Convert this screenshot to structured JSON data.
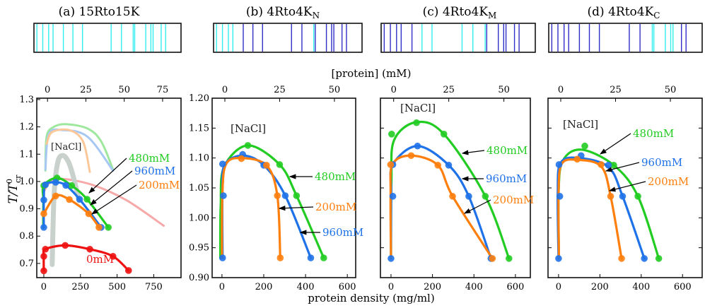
{
  "figure": {
    "top_axis_label": "[protein] (mM)",
    "bottom_axis_label": "protein density (mg/ml)",
    "y_axis_label": "T/T",
    "y_axis_label_sup": "0",
    "y_axis_label_sub": "cr"
  },
  "colors": {
    "K": "#33eeee",
    "R": "#3030c8",
    "480mM": "#22cc22",
    "960mM": "#1f72e8",
    "200mM": "#ff7f0e",
    "0mM": "#ee1111"
  },
  "strips": [
    {
      "title": "(a)  15Rto15K",
      "title_sub": "",
      "residues": [
        "K",
        "K",
        "K",
        "K",
        "K",
        "K",
        "K",
        "K",
        "K",
        "K",
        "K",
        "K",
        "K",
        "K",
        "K",
        "K"
      ]
    },
    {
      "title": "(b) 4Rto4K",
      "title_sub": "N",
      "residues": [
        "K",
        "K",
        "K",
        "K",
        "R",
        "R",
        "R",
        "R",
        "R",
        "K",
        "R",
        "R",
        "R",
        "R",
        "R",
        "R"
      ]
    },
    {
      "title": "(c) 4Rto4K",
      "title_sub": "M",
      "residues": [
        "R",
        "R",
        "R",
        "R",
        "R",
        "K",
        "K",
        "K",
        "K",
        "K",
        "R",
        "R",
        "R",
        "R",
        "R",
        "R"
      ]
    },
    {
      "title": "(d) 4Rto4K",
      "title_sub": "C",
      "residues": [
        "R",
        "R",
        "R",
        "R",
        "R",
        "R",
        "R",
        "R",
        "R",
        "K",
        "K",
        "K",
        "K",
        "K",
        "R",
        "R"
      ]
    }
  ],
  "chart_data": [
    {
      "type": "line",
      "panel": "a",
      "xlabel": "protein density (mg/ml)",
      "top_xlabel": "[protein] (mM)",
      "xlim": [
        -48,
        936
      ],
      "top_xlim": [
        -7,
        87
      ],
      "ylim": [
        0.648,
        1.305
      ],
      "xticks": [
        0,
        250,
        500,
        750
      ],
      "top_xticks": [
        0,
        25,
        50,
        75
      ],
      "yticks": [
        0.7,
        0.8,
        0.9,
        1.0,
        1.1,
        1.2,
        1.3
      ],
      "ytick_labels": [
        "0.7",
        "0.8",
        "0.9",
        "1.0",
        "1.1",
        "1.2",
        "1.3"
      ],
      "legend_title": "[NaCl]",
      "background_curves": [
        {
          "color": "#9ee89e",
          "points": [
            [
              11,
              1.04
            ],
            [
              19,
              1.164
            ],
            [
              65,
              1.199
            ],
            [
              150,
              1.21
            ],
            [
              298,
              1.194
            ],
            [
              391,
              1.147
            ],
            [
              472,
              1.044
            ]
          ]
        },
        {
          "color": "#a8c8f4",
          "points": [
            [
              11,
              1.044
            ],
            [
              34,
              1.173
            ],
            [
              127,
              1.188
            ],
            [
              298,
              1.164
            ],
            [
              472,
              1.04
            ]
          ]
        },
        {
          "color": "#fcc89a",
          "points": [
            [
              19,
              1.138
            ],
            [
              57,
              1.181
            ],
            [
              174,
              1.188
            ],
            [
              267,
              1.147
            ],
            [
              314,
              1.035
            ]
          ]
        },
        {
          "color": "#f7a8a8",
          "points": [
            [
              3,
              0.965
            ],
            [
              40,
              0.995
            ],
            [
              127,
              1.009
            ],
            [
              329,
              0.988
            ],
            [
              562,
              0.932
            ],
            [
              818,
              0.838
            ]
          ]
        },
        {
          "color": "#c9d1cc",
          "width": 7,
          "points": [
            [
              57,
              0.696
            ],
            [
              70,
              0.95
            ],
            [
              95,
              1.07
            ],
            [
              130,
              1.095
            ],
            [
              170,
              1.07
            ],
            [
              205,
              1.01
            ],
            [
              240,
              0.93
            ]
          ]
        }
      ],
      "series": [
        {
          "name": "0mM",
          "points": [
            [
              0,
              0.673
            ],
            [
              0,
              0.726
            ],
            [
              11,
              0.752
            ],
            [
              146,
              0.766
            ],
            [
              314,
              0.752
            ],
            [
              472,
              0.726
            ],
            [
              578,
              0.674
            ]
          ],
          "curve": [
            [
              0,
              0.673
            ],
            [
              0,
              0.726
            ],
            [
              11,
              0.752
            ],
            [
              146,
              0.766
            ],
            [
              314,
              0.752
            ],
            [
              472,
              0.726
            ],
            [
              578,
              0.674
            ]
          ]
        },
        {
          "name": "480mM",
          "points": [
            [
              0,
              0.985
            ],
            [
              90,
              1.013
            ],
            [
              190,
              0.985
            ],
            [
              295,
              0.935
            ],
            [
              440,
              0.832
            ]
          ],
          "curve": [
            [
              -4,
              0.83
            ],
            [
              -3,
              0.93
            ],
            [
              0,
              0.985
            ],
            [
              90,
              1.013
            ],
            [
              190,
              0.985
            ],
            [
              295,
              0.935
            ],
            [
              440,
              0.832
            ]
          ]
        },
        {
          "name": "960mM",
          "points": [
            [
              0,
              0.832
            ],
            [
              0,
              0.932
            ],
            [
              11,
              0.988
            ],
            [
              81,
              0.997
            ],
            [
              150,
              0.986
            ],
            [
              244,
              0.935
            ],
            [
              391,
              0.832
            ]
          ],
          "curve": [
            [
              0,
              0.832
            ],
            [
              0,
              0.932
            ],
            [
              11,
              0.988
            ],
            [
              81,
              0.997
            ],
            [
              150,
              0.986
            ],
            [
              244,
              0.935
            ],
            [
              391,
              0.832
            ]
          ]
        },
        {
          "name": "200mM",
          "points": [
            [
              0,
              0.882
            ],
            [
              81,
              0.947
            ],
            [
              174,
              0.934
            ],
            [
              306,
              0.882
            ],
            [
              376,
              0.832
            ]
          ],
          "curve": [
            [
              0,
              0.882
            ],
            [
              81,
              0.947
            ],
            [
              174,
              0.934
            ],
            [
              306,
              0.882
            ],
            [
              376,
              0.832
            ]
          ]
        }
      ]
    },
    {
      "type": "line",
      "panel": "b",
      "xlim": [
        -47,
        640
      ],
      "top_xlim": [
        -5.8,
        59.7
      ],
      "ylim": [
        0.9,
        1.2
      ],
      "xticks": [
        0,
        200,
        400,
        600
      ],
      "top_xticks": [
        0,
        25,
        50
      ],
      "yticks": [
        0.9,
        0.95,
        1.0,
        1.05,
        1.1,
        1.15,
        1.2
      ],
      "ytick_labels": [
        "0.90",
        "0.95",
        "1.00",
        "1.05",
        "1.10",
        "1.15",
        "1.20"
      ],
      "legend_title": "[NaCl]",
      "series": [
        {
          "name": "480mM",
          "points": [
            [
              124,
              1.121
            ],
            [
              276,
              1.089
            ],
            [
              357,
              1.037
            ],
            [
              487,
              0.933
            ]
          ],
          "curve": [
            [
              -8,
              0.933
            ],
            [
              -6,
              1.02
            ],
            [
              10,
              1.085
            ],
            [
              124,
              1.121
            ],
            [
              276,
              1.089
            ],
            [
              357,
              1.037
            ],
            [
              487,
              0.933
            ]
          ]
        },
        {
          "name": "960mM",
          "points": [
            [
              3,
              0.933
            ],
            [
              7,
              1.037
            ],
            [
              3,
              1.09
            ],
            [
              99,
              1.106
            ],
            [
              200,
              1.088
            ],
            [
              303,
              1.037
            ],
            [
              425,
              0.933
            ]
          ],
          "curve": [
            [
              3,
              0.933
            ],
            [
              2,
              1.037
            ],
            [
              12,
              1.088
            ],
            [
              99,
              1.104
            ],
            [
              200,
              1.088
            ],
            [
              303,
              1.037
            ],
            [
              425,
              0.933
            ]
          ]
        },
        {
          "name": "200mM",
          "points": [
            [
              93,
              1.099
            ],
            [
              213,
              1.088
            ],
            [
              265,
              1.037
            ],
            [
              279,
              0.933
            ]
          ],
          "curve": [
            [
              0,
              0.933
            ],
            [
              2,
              1.04
            ],
            [
              20,
              1.09
            ],
            [
              93,
              1.1
            ],
            [
              213,
              1.088
            ],
            [
              265,
              1.037
            ],
            [
              279,
              0.933
            ]
          ]
        }
      ]
    },
    {
      "type": "line",
      "panel": "c",
      "xlim": [
        -51,
        672
      ],
      "top_xlim": [
        -6,
        62
      ],
      "ylim": [
        0.9,
        1.2
      ],
      "xticks": [
        0,
        200,
        400,
        600
      ],
      "top_xticks": [
        0,
        25,
        50
      ],
      "yticks": [
        0.9,
        0.95,
        1.0,
        1.05,
        1.1,
        1.15,
        1.2
      ],
      "ytick_labels": [],
      "legend_title": "[NaCl]",
      "series": [
        {
          "name": "480mM",
          "points": [
            [
              3,
              1.14
            ],
            [
              123,
              1.159
            ],
            [
              255,
              1.14
            ],
            [
              455,
              1.036
            ],
            [
              569,
              0.932
            ]
          ],
          "curve": [
            [
              0,
              0.932
            ],
            [
              2,
              1.06
            ],
            [
              15,
              1.13
            ],
            [
              123,
              1.16
            ],
            [
              255,
              1.14
            ],
            [
              455,
              1.036
            ],
            [
              569,
              0.932
            ]
          ]
        },
        {
          "name": "960mM",
          "points": [
            [
              0,
              0.932
            ],
            [
              9,
              1.036
            ],
            [
              9,
              1.089
            ],
            [
              128,
              1.12
            ],
            [
              278,
              1.088
            ],
            [
              375,
              1.036
            ],
            [
              482,
              0.932
            ]
          ],
          "curve": [
            [
              0,
              0.932
            ],
            [
              1,
              1.04
            ],
            [
              9,
              1.089
            ],
            [
              128,
              1.12
            ],
            [
              278,
              1.088
            ],
            [
              375,
              1.036
            ],
            [
              482,
              0.932
            ]
          ]
        },
        {
          "name": "200mM",
          "points": [
            [
              -2,
              1.089
            ],
            [
              97,
              1.104
            ],
            [
              226,
              1.088
            ],
            [
              297,
              1.036
            ],
            [
              489,
              0.932
            ]
          ],
          "curve": [
            [
              0,
              0.932
            ],
            [
              -2,
              1.04
            ],
            [
              8,
              1.09
            ],
            [
              97,
              1.104
            ],
            [
              226,
              1.088
            ],
            [
              297,
              1.036
            ],
            [
              489,
              0.932
            ]
          ]
        }
      ]
    },
    {
      "type": "line",
      "panel": "d",
      "xlim": [
        -51,
        695
      ],
      "top_xlim": [
        -5.8,
        64.5
      ],
      "ylim": [
        0.9,
        1.2
      ],
      "xticks": [
        0,
        200,
        400,
        600
      ],
      "top_xticks": [
        0,
        25,
        50
      ],
      "yticks": [
        0.9,
        0.95,
        1.0,
        1.05,
        1.1,
        1.15,
        1.2
      ],
      "ytick_labels": [],
      "legend_title": "[NaCl]",
      "series": [
        {
          "name": "480mM",
          "points": [
            [
              127,
              1.12
            ],
            [
              267,
              1.088
            ],
            [
              384,
              1.036
            ],
            [
              485,
              0.932
            ]
          ],
          "curve": [
            [
              2,
              0.932
            ],
            [
              0,
              1.04
            ],
            [
              20,
              1.095
            ],
            [
              110,
              1.114
            ],
            [
              267,
              1.088
            ],
            [
              384,
              1.036
            ],
            [
              485,
              0.932
            ]
          ]
        },
        {
          "name": "960mM",
          "points": [
            [
              0,
              0.932
            ],
            [
              6,
              1.036
            ],
            [
              2,
              1.089
            ],
            [
              109,
              1.104
            ],
            [
              241,
              1.088
            ],
            [
              310,
              1.036
            ],
            [
              415,
              0.932
            ]
          ],
          "curve": [
            [
              0,
              0.932
            ],
            [
              -4,
              1.04
            ],
            [
              10,
              1.092
            ],
            [
              100,
              1.1
            ],
            [
              241,
              1.085
            ],
            [
              310,
              1.036
            ],
            [
              415,
              0.932
            ]
          ]
        },
        {
          "name": "200mM",
          "points": [
            [
              90,
              1.098
            ],
            [
              206,
              1.089
            ],
            [
              252,
              1.036
            ],
            [
              305,
              0.932
            ]
          ],
          "curve": [
            [
              2,
              0.932
            ],
            [
              0,
              1.04
            ],
            [
              15,
              1.09
            ],
            [
              90,
              1.097
            ],
            [
              206,
              1.086
            ],
            [
              252,
              1.036
            ],
            [
              305,
              0.932
            ]
          ]
        }
      ]
    }
  ]
}
